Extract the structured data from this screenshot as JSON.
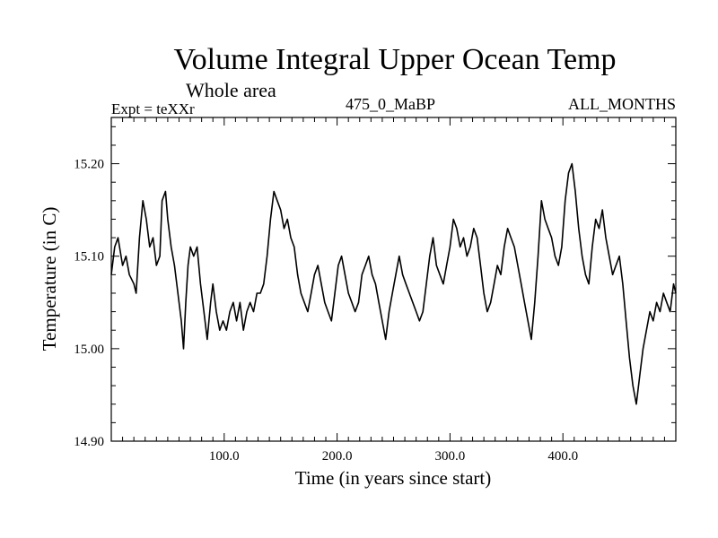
{
  "header": {
    "title": "Volume Integral Upper Ocean Temp",
    "subtitle": "Whole area",
    "expt_label": "Expt = teXXr",
    "run_label": "475_0_MaBP",
    "months_label": "ALL_MONTHS"
  },
  "chart_data": {
    "type": "line",
    "title": "Volume Integral Upper Ocean Temp",
    "subtitle": "Whole area",
    "xlabel": "Time (in years since start)",
    "ylabel": "Temperature (in C)",
    "xlim": [
      0,
      500
    ],
    "ylim": [
      14.9,
      15.25
    ],
    "xticks": [
      100,
      200,
      300,
      400
    ],
    "xtick_labels": [
      "100.0",
      "200.0",
      "300.0",
      "400.0"
    ],
    "yticks": [
      14.9,
      15.0,
      15.1,
      15.2
    ],
    "ytick_labels": [
      "14.90",
      "15.00",
      "15.10",
      "15.20"
    ],
    "grid": false,
    "series": [
      {
        "name": "Volume Integral Upper Ocean Temp",
        "x": [
          0,
          3,
          6,
          10,
          13,
          16,
          20,
          22,
          25,
          28,
          31,
          34,
          37,
          40,
          43,
          45,
          48,
          50,
          53,
          56,
          60,
          62,
          64,
          66,
          68,
          70,
          73,
          76,
          79,
          82,
          85,
          88,
          90,
          93,
          96,
          99,
          102,
          105,
          108,
          111,
          114,
          117,
          120,
          123,
          126,
          129,
          132,
          135,
          138,
          141,
          144,
          147,
          150,
          153,
          156,
          159,
          162,
          165,
          168,
          171,
          174,
          177,
          180,
          183,
          186,
          189,
          192,
          195,
          198,
          201,
          204,
          207,
          210,
          213,
          216,
          219,
          222,
          225,
          228,
          231,
          234,
          237,
          240,
          243,
          246,
          249,
          252,
          255,
          258,
          261,
          264,
          267,
          270,
          273,
          276,
          279,
          282,
          285,
          288,
          291,
          294,
          297,
          300,
          303,
          306,
          309,
          312,
          315,
          318,
          321,
          324,
          327,
          330,
          333,
          336,
          339,
          342,
          345,
          348,
          351,
          354,
          357,
          360,
          363,
          366,
          369,
          372,
          375,
          378,
          381,
          384,
          387,
          390,
          393,
          396,
          399,
          402,
          405,
          408,
          411,
          414,
          417,
          420,
          423,
          426,
          429,
          432,
          435,
          438,
          441,
          444,
          447,
          450,
          453,
          456,
          459,
          462,
          465,
          468,
          471,
          474,
          477,
          480,
          483,
          486,
          489,
          492,
          495,
          498,
          500
        ],
        "values": [
          15.08,
          15.11,
          15.12,
          15.09,
          15.1,
          15.08,
          15.07,
          15.06,
          15.12,
          15.16,
          15.14,
          15.11,
          15.12,
          15.09,
          15.1,
          15.16,
          15.17,
          15.14,
          15.11,
          15.09,
          15.05,
          15.03,
          15.0,
          15.05,
          15.09,
          15.11,
          15.1,
          15.11,
          15.07,
          15.04,
          15.01,
          15.05,
          15.07,
          15.04,
          15.02,
          15.03,
          15.02,
          15.04,
          15.05,
          15.03,
          15.05,
          15.02,
          15.04,
          15.05,
          15.04,
          15.06,
          15.06,
          15.07,
          15.1,
          15.14,
          15.17,
          15.16,
          15.15,
          15.13,
          15.14,
          15.12,
          15.11,
          15.08,
          15.06,
          15.05,
          15.04,
          15.06,
          15.08,
          15.09,
          15.07,
          15.05,
          15.04,
          15.03,
          15.06,
          15.09,
          15.1,
          15.08,
          15.06,
          15.05,
          15.04,
          15.05,
          15.08,
          15.09,
          15.1,
          15.08,
          15.07,
          15.05,
          15.03,
          15.01,
          15.04,
          15.06,
          15.08,
          15.1,
          15.08,
          15.07,
          15.06,
          15.05,
          15.04,
          15.03,
          15.04,
          15.07,
          15.1,
          15.12,
          15.09,
          15.08,
          15.07,
          15.09,
          15.11,
          15.14,
          15.13,
          15.11,
          15.12,
          15.1,
          15.11,
          15.13,
          15.12,
          15.09,
          15.06,
          15.04,
          15.05,
          15.07,
          15.09,
          15.08,
          15.11,
          15.13,
          15.12,
          15.11,
          15.09,
          15.07,
          15.05,
          15.03,
          15.01,
          15.05,
          15.1,
          15.16,
          15.14,
          15.13,
          15.12,
          15.1,
          15.09,
          15.11,
          15.16,
          15.19,
          15.2,
          15.17,
          15.13,
          15.1,
          15.08,
          15.07,
          15.11,
          15.14,
          15.13,
          15.15,
          15.12,
          15.1,
          15.08,
          15.09,
          15.1,
          15.07,
          15.03,
          14.99,
          14.96,
          14.94,
          14.97,
          15.0,
          15.02,
          15.04,
          15.03,
          15.05,
          15.04,
          15.06,
          15.05,
          15.04,
          15.07,
          15.06
        ]
      }
    ]
  }
}
